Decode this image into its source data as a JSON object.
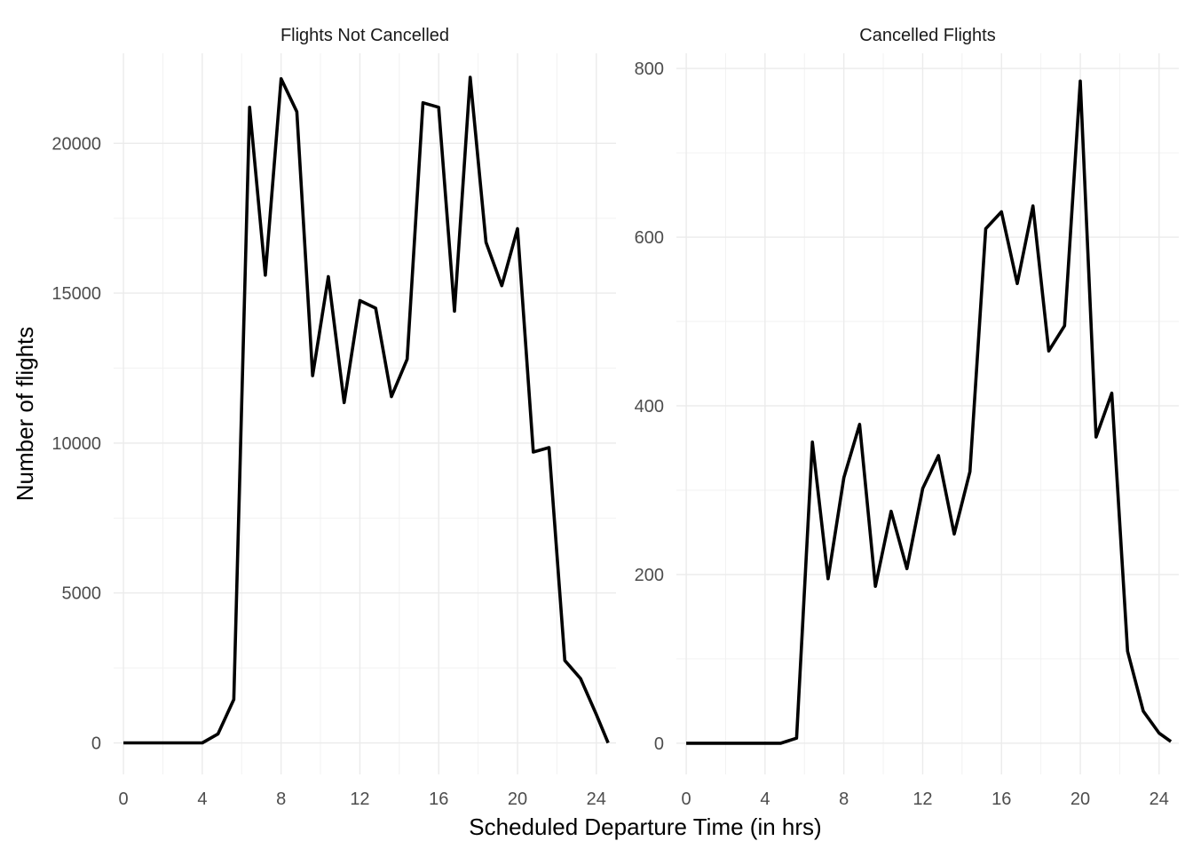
{
  "chart_data": {
    "type": "line",
    "xlabel": "Scheduled Departure Time (in hrs)",
    "ylabel": "Number of flights",
    "shared_x": true,
    "grid": true,
    "legend": "none",
    "line_color": "#000000",
    "panels": [
      {
        "title": "Flights Not Cancelled",
        "xlim": [
          -0.5,
          25
        ],
        "ylim": [
          -1050,
          23000
        ],
        "x_ticks": [
          0,
          4,
          8,
          12,
          16,
          20,
          24
        ],
        "y_ticks": [
          0,
          5000,
          10000,
          15000,
          20000
        ],
        "y_tick_labels": [
          "0",
          "5000",
          "10000",
          "15000",
          "20000"
        ],
        "series": [
          {
            "x": [
              0,
              0.8,
              1.6,
              2.4,
              3.2,
              4.0,
              4.8,
              5.6,
              6.4,
              7.2,
              8.0,
              8.8,
              9.6,
              10.4,
              11.2,
              12.0,
              12.8,
              13.6,
              14.4,
              15.2,
              16.0,
              16.8,
              17.6,
              18.4,
              19.2,
              20.0,
              20.8,
              21.6,
              22.4,
              23.2,
              24.0,
              24.6
            ],
            "y": [
              0,
              0,
              0,
              0,
              0,
              0,
              300,
              1450,
              21200,
              15600,
              22150,
              21050,
              12250,
              15550,
              11350,
              14750,
              14500,
              11550,
              12800,
              21350,
              21200,
              14400,
              22200,
              16700,
              15250,
              17150,
              9700,
              9850,
              2750,
              2150,
              950,
              0
            ]
          }
        ]
      },
      {
        "title": "Cancelled Flights",
        "xlim": [
          -0.5,
          25
        ],
        "ylim": [
          -37,
          818
        ],
        "x_ticks": [
          0,
          4,
          8,
          12,
          16,
          20,
          24
        ],
        "y_ticks": [
          0,
          200,
          400,
          600,
          800
        ],
        "y_tick_labels": [
          "0",
          "200",
          "400",
          "600",
          "800"
        ],
        "series": [
          {
            "x": [
              0,
              0.8,
              1.6,
              2.4,
              3.2,
              4.0,
              4.8,
              5.6,
              6.4,
              7.2,
              8.0,
              8.8,
              9.6,
              10.4,
              11.2,
              12.0,
              12.8,
              13.6,
              14.4,
              15.2,
              16.0,
              16.8,
              17.6,
              18.4,
              19.2,
              20.0,
              20.8,
              21.6,
              22.4,
              23.2,
              24.0,
              24.6
            ],
            "y": [
              0,
              0,
              0,
              0,
              0,
              0,
              0,
              6,
              357,
              195,
              315,
              378,
              186,
              275,
              207,
              302,
              341,
              248,
              322,
              610,
              630,
              545,
              637,
              465,
              495,
              785,
              363,
              415,
              109,
              38,
              12,
              2
            ]
          }
        ]
      }
    ]
  }
}
